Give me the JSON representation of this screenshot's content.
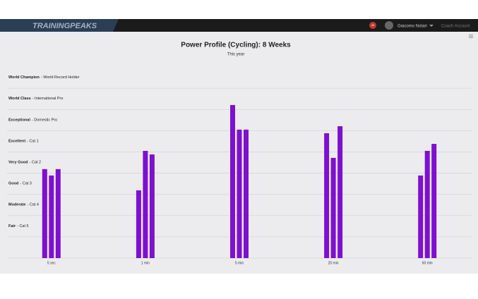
{
  "header": {
    "logo": "TRAININGPEAKS",
    "notifications": "40",
    "user": "Giacomo Notari",
    "account": "Coach Account"
  },
  "chart_data": {
    "type": "bar",
    "title": "Power Profile (Cycling): 8 Weeks",
    "subtitle": "This year",
    "categories": [
      "5 sec",
      "1 min",
      "5 min",
      "20 min",
      "60 min"
    ],
    "series": [
      {
        "color": "#7e10d0",
        "values": [
          4.19,
          3.19,
          7.21,
          5.88,
          3.89
        ]
      },
      {
        "color": "#7e10d0",
        "values": [
          3.89,
          5.05,
          6.05,
          4.72,
          5.05
        ]
      },
      {
        "color": "#7e10d0",
        "values": [
          4.19,
          4.88,
          6.05,
          6.21,
          5.38
        ]
      }
    ],
    "levels": [
      {
        "name": "Fair",
        "description": "- Cat 5"
      },
      {
        "name": "Moderate",
        "description": "- Cat 4"
      },
      {
        "name": "Good",
        "description": "- Cat 3"
      },
      {
        "name": "Very Good",
        "description": "- Cat 2"
      },
      {
        "name": "Excellent",
        "description": "- Cat 1"
      },
      {
        "name": "Exceptional",
        "description": "- Domestic Pro"
      },
      {
        "name": "World Class",
        "description": "- International Pro"
      },
      {
        "name": "World Champion",
        "description": "- World Record Holder"
      }
    ],
    "ylim": [
      0,
      9
    ],
    "yticks": [
      0,
      1,
      2,
      3,
      4,
      5,
      6,
      7,
      8
    ],
    "grid": true
  }
}
